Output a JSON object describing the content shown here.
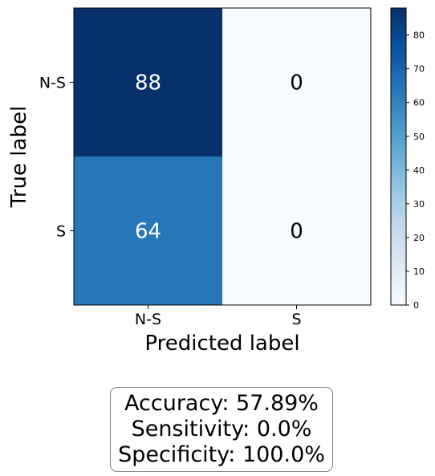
{
  "chart_data": {
    "type": "heatmap",
    "title": "",
    "xlabel": "Predicted label",
    "ylabel": "True label",
    "x_categories": [
      "N-S",
      "S"
    ],
    "y_categories": [
      "N-S",
      "S"
    ],
    "values": [
      [
        88,
        0
      ],
      [
        64,
        0
      ]
    ],
    "colormap": "Blues",
    "color_min": 0,
    "color_max": 88,
    "colorbar_ticks": [
      0,
      10,
      20,
      30,
      40,
      50,
      60,
      70,
      80
    ],
    "cell_text_threshold": 44,
    "colors": {
      "dark_text": "#000000",
      "light_text": "#ffffff",
      "axis": "#000000"
    }
  },
  "metrics": {
    "accuracy": "Accuracy: 57.89%",
    "sensitivity": "Sensitivity: 0.0%",
    "specificity": "Specificity: 100.0%"
  }
}
